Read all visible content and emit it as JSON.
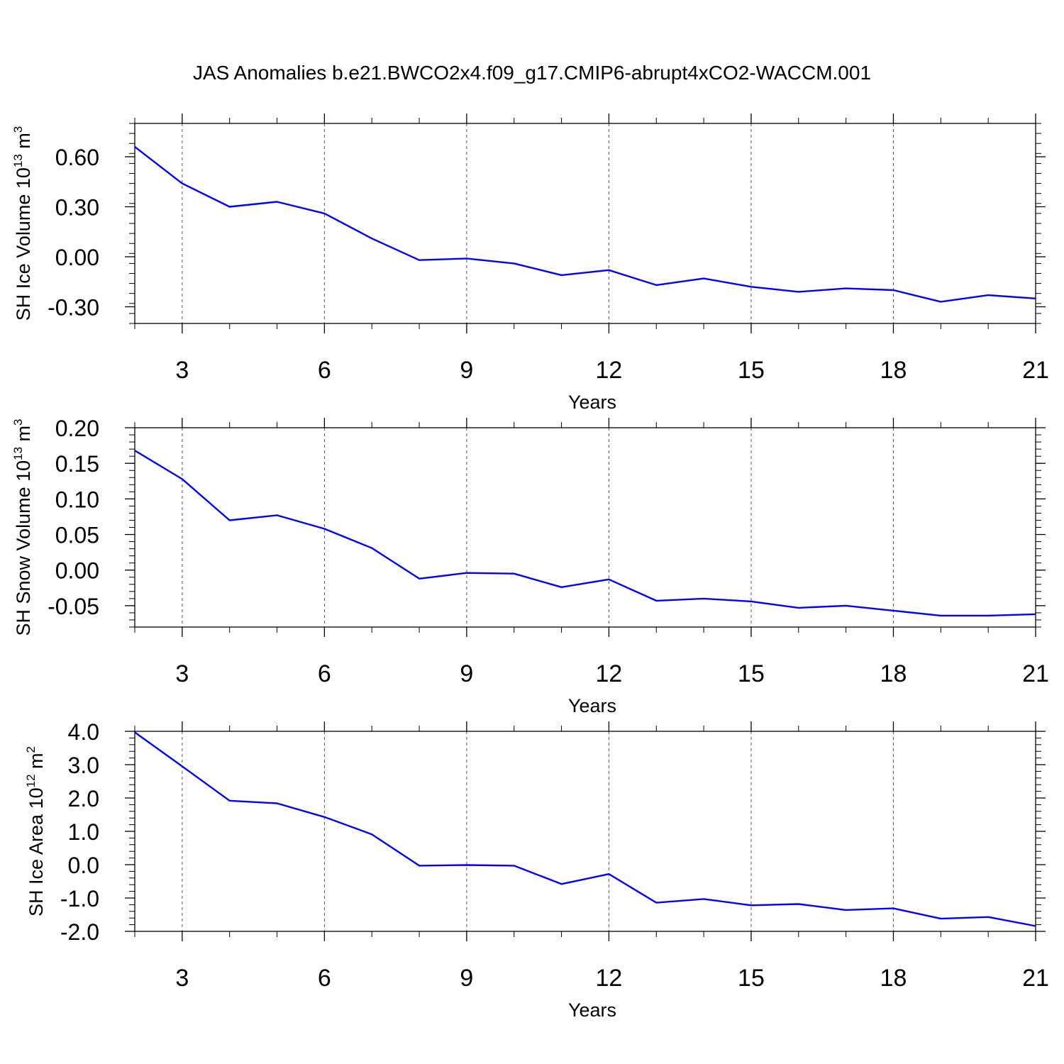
{
  "title": "JAS Anomalies b.e21.BWCO2x4.f09_g17.CMIP6-abrupt4xCO2-WACCM.001",
  "line_color": "#0000ff",
  "chart_data": [
    {
      "type": "line",
      "ylabel": "SH Ice Volume 10",
      "ylabel_exp": "13",
      "ylabel_unit": " m",
      "ylabel_unit_exp": "3",
      "xlabel": "Years",
      "xlim": [
        2,
        21
      ],
      "ylim": [
        -0.4,
        0.8
      ],
      "x_ticks": [
        3,
        6,
        9,
        12,
        15,
        18,
        21
      ],
      "x_tick_labels": [
        "3",
        "6",
        "9",
        "12",
        "15",
        "18",
        "21"
      ],
      "y_ticks": [
        -0.3,
        0,
        0.3,
        0.6
      ],
      "y_tick_labels": [
        "-0.30",
        "0.00",
        "0.30",
        "0.60"
      ],
      "y_minor_step": 0.06,
      "x": [
        2,
        3,
        4,
        5,
        6,
        7,
        8,
        9,
        10,
        11,
        12,
        13,
        14,
        15,
        16,
        17,
        18,
        19,
        20,
        21
      ],
      "series": [
        {
          "values": [
            0.66,
            0.44,
            0.3,
            0.33,
            0.26,
            0.11,
            -0.02,
            -0.01,
            -0.04,
            -0.11,
            -0.08,
            -0.17,
            -0.13,
            -0.18,
            -0.21,
            -0.19,
            -0.2,
            -0.27,
            -0.23,
            -0.25
          ]
        }
      ]
    },
    {
      "type": "line",
      "ylabel": "SH Snow Volume 10",
      "ylabel_exp": "13",
      "ylabel_unit": " m",
      "ylabel_unit_exp": "3",
      "xlabel": "Years",
      "xlim": [
        2,
        21
      ],
      "ylim": [
        -0.08,
        0.2
      ],
      "x_ticks": [
        3,
        6,
        9,
        12,
        15,
        18,
        21
      ],
      "x_tick_labels": [
        "3",
        "6",
        "9",
        "12",
        "15",
        "18",
        "21"
      ],
      "y_ticks": [
        -0.05,
        0,
        0.05,
        0.1,
        0.15,
        0.2
      ],
      "y_tick_labels": [
        "-0.05",
        "0.00",
        "0.05",
        "0.10",
        "0.15",
        "0.20"
      ],
      "y_minor_step": 0.01,
      "x": [
        2,
        3,
        4,
        5,
        6,
        7,
        8,
        9,
        10,
        11,
        12,
        13,
        14,
        15,
        16,
        17,
        18,
        19,
        20,
        21
      ],
      "series": [
        {
          "values": [
            0.168,
            0.128,
            0.07,
            0.077,
            0.058,
            0.031,
            -0.012,
            -0.004,
            -0.005,
            -0.024,
            -0.013,
            -0.043,
            -0.04,
            -0.044,
            -0.053,
            -0.05,
            -0.057,
            -0.064,
            -0.064,
            -0.062
          ]
        }
      ]
    },
    {
      "type": "line",
      "ylabel": "SH Ice Area 10",
      "ylabel_exp": "12",
      "ylabel_unit": " m",
      "ylabel_unit_exp": "2",
      "xlabel": "Years",
      "xlim": [
        2,
        21
      ],
      "ylim": [
        -2.0,
        4.0
      ],
      "x_ticks": [
        3,
        6,
        9,
        12,
        15,
        18,
        21
      ],
      "x_tick_labels": [
        "3",
        "6",
        "9",
        "12",
        "15",
        "18",
        "21"
      ],
      "y_ticks": [
        -2,
        -1,
        0,
        1,
        2,
        3,
        4
      ],
      "y_tick_labels": [
        "-2.0",
        "-1.0",
        "0.0",
        "1.0",
        "2.0",
        "3.0",
        "4.0"
      ],
      "y_minor_step": 0.2,
      "x": [
        2,
        3,
        4,
        5,
        6,
        7,
        8,
        9,
        10,
        11,
        12,
        13,
        14,
        15,
        16,
        17,
        18,
        19,
        20,
        21
      ],
      "series": [
        {
          "values": [
            3.97,
            2.95,
            1.92,
            1.84,
            1.43,
            0.91,
            -0.03,
            -0.01,
            -0.03,
            -0.58,
            -0.28,
            -1.14,
            -1.03,
            -1.22,
            -1.18,
            -1.36,
            -1.31,
            -1.62,
            -1.57,
            -1.84
          ]
        }
      ]
    }
  ]
}
